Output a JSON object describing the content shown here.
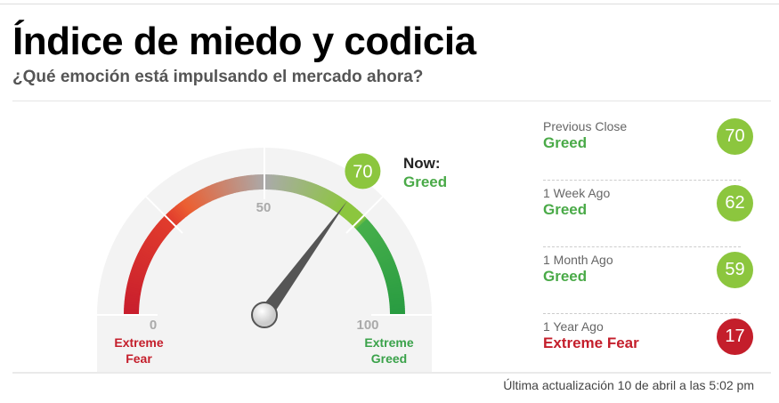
{
  "title": "Índice de miedo y codicia",
  "subtitle": "¿Qué emoción está impulsando el mercado ahora?",
  "gauge": {
    "value": 70,
    "min_label": "0",
    "mid_label": "50",
    "max_label": "100",
    "min_text_1": "Extreme",
    "min_text_2": "Fear",
    "max_text_1": "Extreme",
    "max_text_2": "Greed",
    "now_label": "Now:",
    "now_status": "Greed",
    "now_value": "70"
  },
  "history": [
    {
      "label": "Previous Close",
      "status": "Greed",
      "value": "70",
      "color": "#8cc63e",
      "status_color": "#4aaa48"
    },
    {
      "label": "1 Week Ago",
      "status": "Greed",
      "value": "62",
      "color": "#8cc63e",
      "status_color": "#4aaa48"
    },
    {
      "label": "1 Month Ago",
      "status": "Greed",
      "value": "59",
      "color": "#8cc63e",
      "status_color": "#4aaa48"
    },
    {
      "label": "1 Year Ago",
      "status": "Extreme Fear",
      "value": "17",
      "color": "#c41e2b",
      "status_color": "#c41e2b"
    }
  ],
  "updated": "Última actualización 10 de abril a las 5:02 pm"
}
